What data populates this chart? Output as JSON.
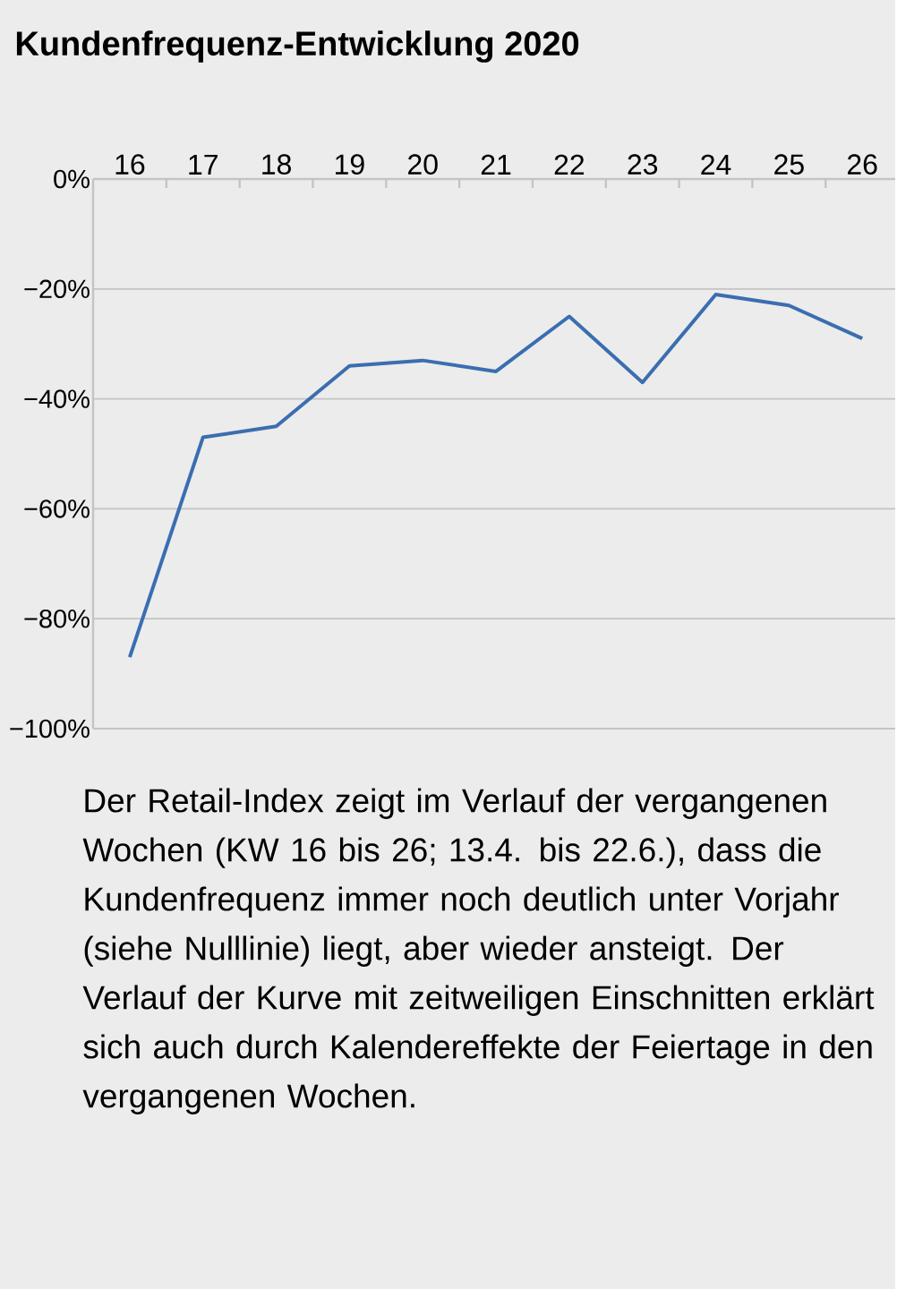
{
  "chart_data": {
    "type": "line",
    "title": "Kundenfrequenz-Entwicklung 2020",
    "categories": [
      "16",
      "17",
      "18",
      "19",
      "20",
      "21",
      "22",
      "23",
      "24",
      "25",
      "26"
    ],
    "values": [
      -87,
      -47,
      -45,
      -34,
      -33,
      -35,
      -25,
      -37,
      -21,
      -23,
      -29
    ],
    "color": "#3a6eb0",
    "ylim": [
      -100,
      0
    ],
    "yticks": [
      {
        "value": 0,
        "label": "0%"
      },
      {
        "value": -20,
        "label": "−20%"
      },
      {
        "value": -40,
        "label": "−40%"
      },
      {
        "value": -60,
        "label": "−60%"
      },
      {
        "value": -80,
        "label": "−80%"
      },
      {
        "value": -100,
        "label": "−100%"
      }
    ],
    "grid": "y",
    "marker": "none",
    "line_style": "solid",
    "annotations": [
      "Der Retail-Index zeigt im Verlauf der vergangenen Wochen (KW 16 bis 26; 13.4. bis 22.6.), dass die Kundenfrequenz immer noch deutlich unter Vorjahr (siehe Nulllinie) liegt, aber wieder ansteigt. Der Verlauf der Kurve mit zeitweiligen Einschnitten erklärt sich auch durch Kalendereffekte der Feiertage in den vergangenen Wochen."
    ]
  }
}
